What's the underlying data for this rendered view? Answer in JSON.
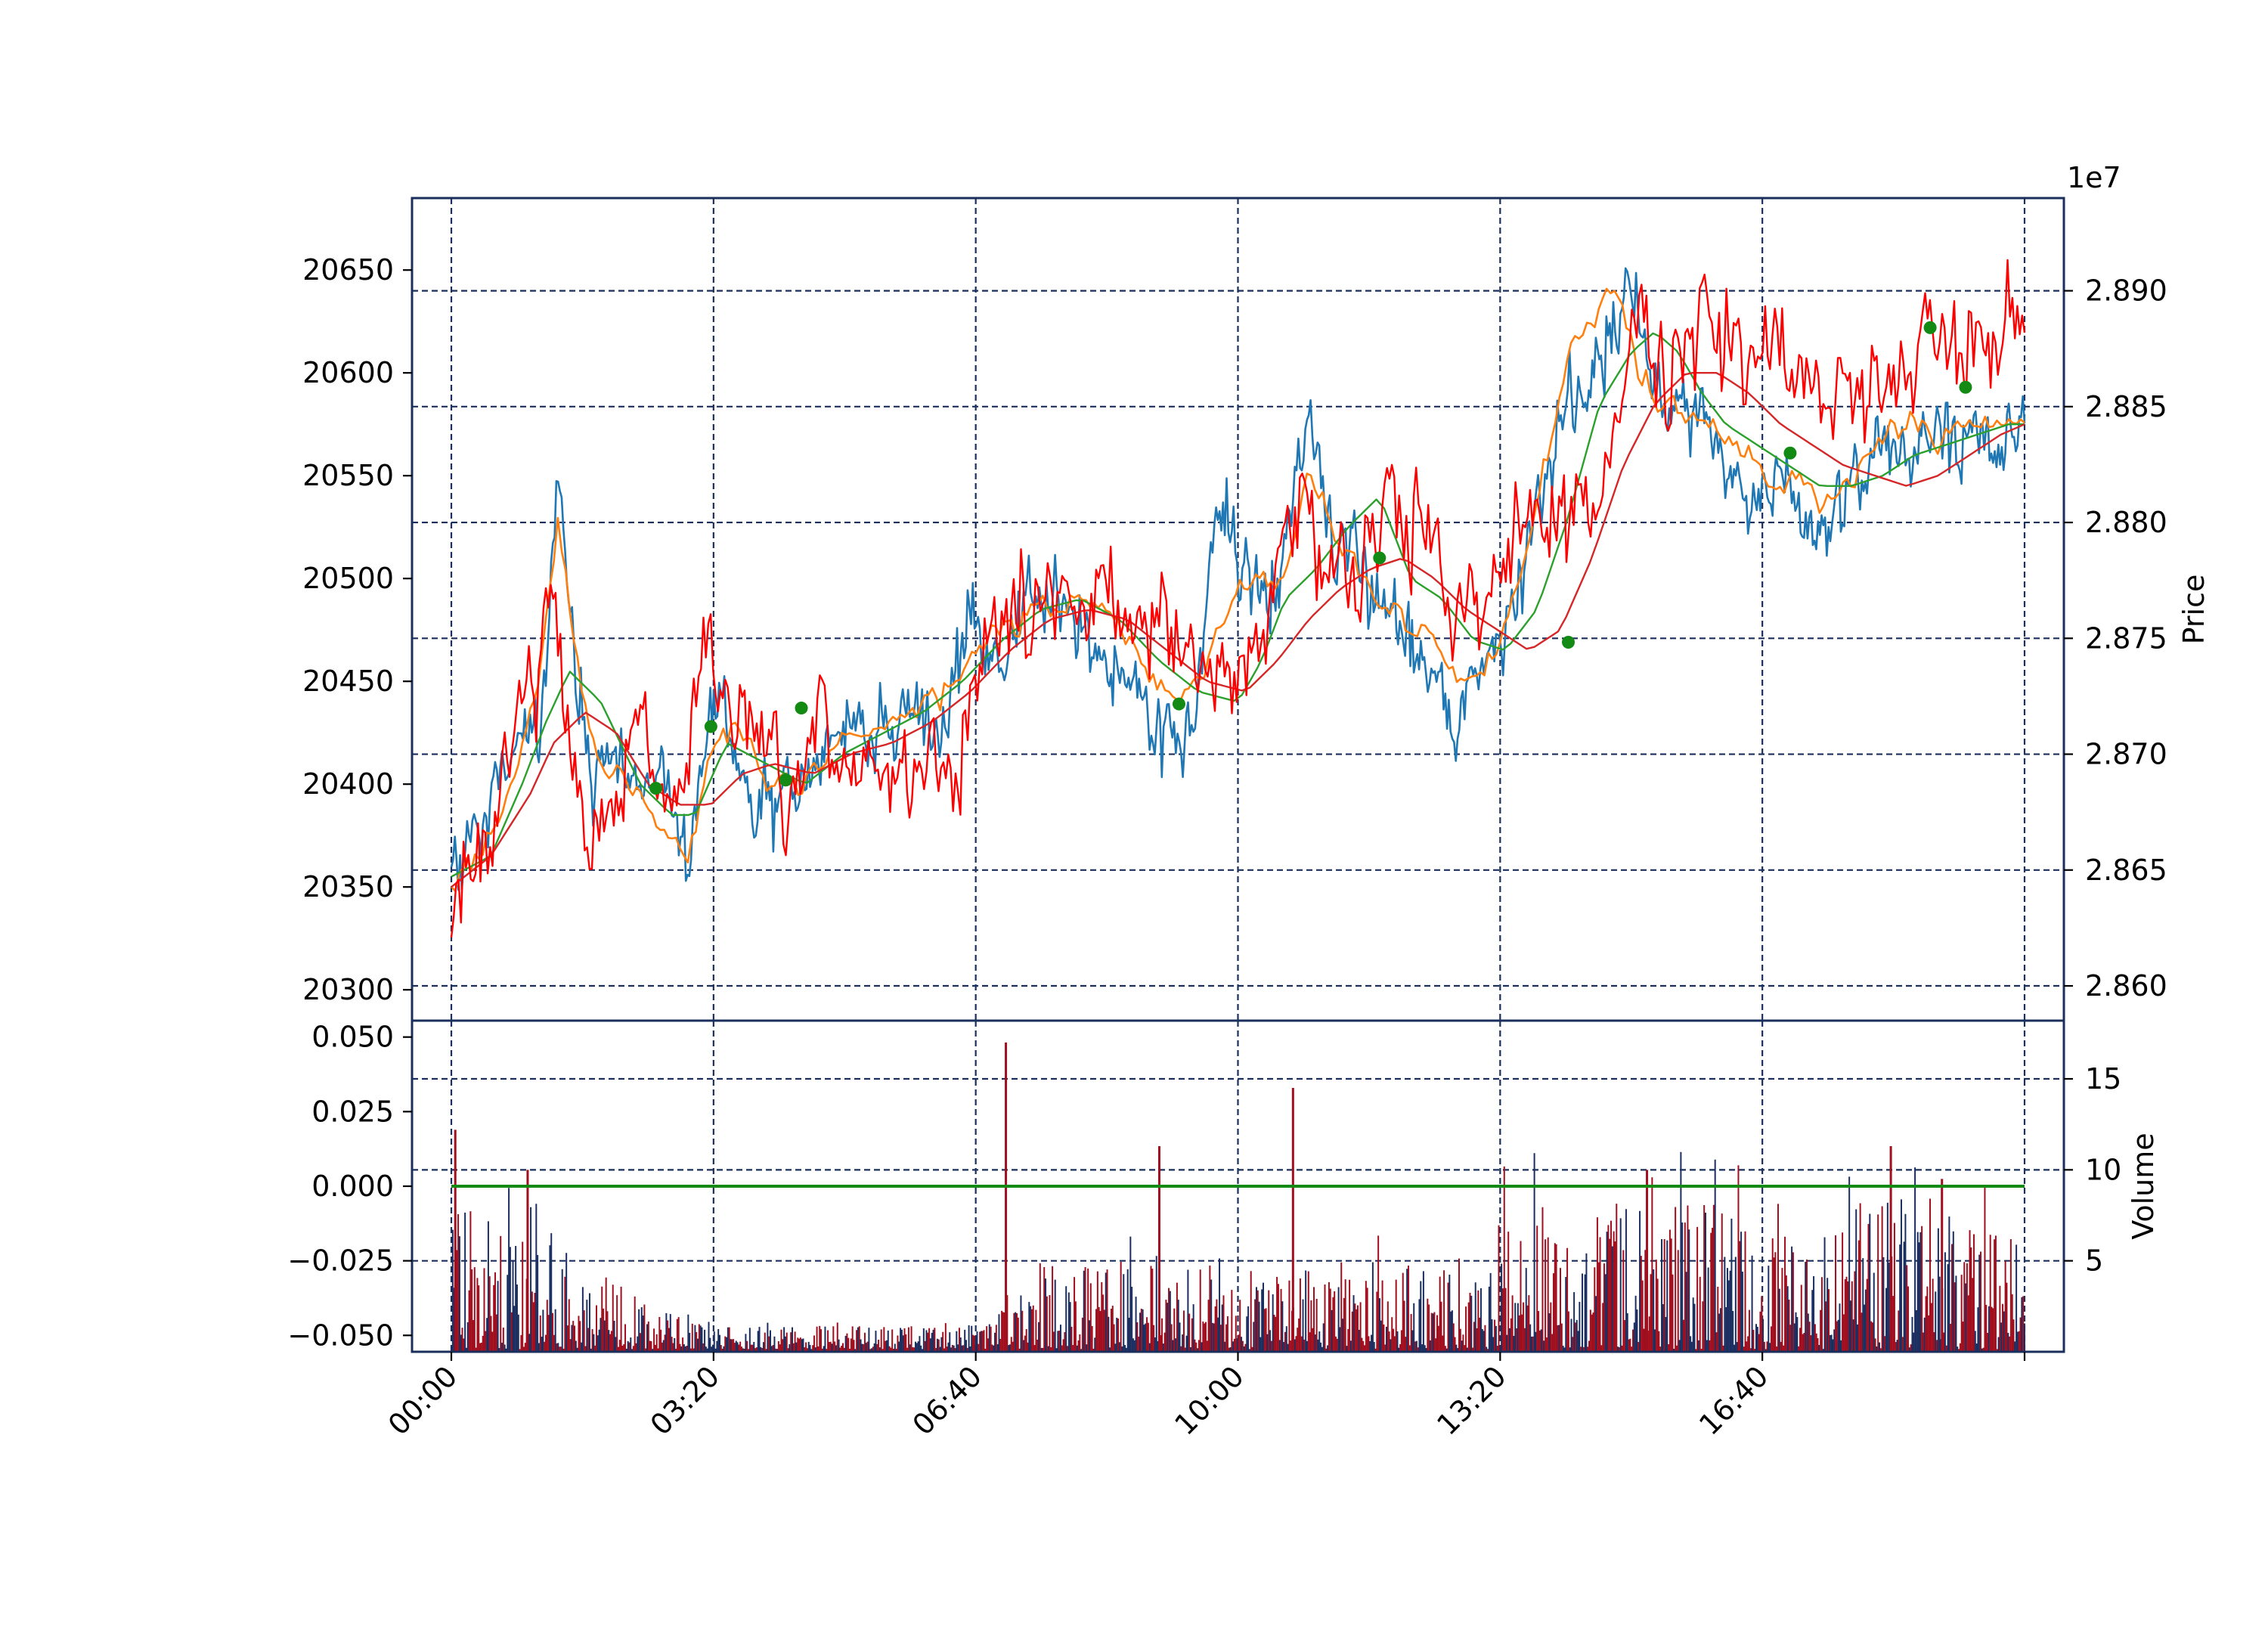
{
  "chart_data": {
    "type": "line",
    "panels": [
      {
        "id": "price",
        "left_axis": {
          "ylim": [
            20285,
            20685
          ],
          "ticks": [
            20300,
            20350,
            20400,
            20450,
            20500,
            20550,
            20600,
            20650
          ],
          "tick_labels": [
            "20300",
            "20350",
            "20400",
            "20450",
            "20500",
            "20550",
            "20600",
            "20650"
          ]
        },
        "right_axis": {
          "label": "Price",
          "offset_label": "1e7",
          "ylim": [
            2.8585,
            2.894
          ],
          "ticks": [
            2.86,
            2.865,
            2.87,
            2.875,
            2.88,
            2.885,
            2.89
          ],
          "tick_labels": [
            "2.860",
            "2.865",
            "2.870",
            "2.875",
            "2.880",
            "2.885",
            "2.890"
          ]
        },
        "grid": true
      },
      {
        "id": "volume",
        "left_axis": {
          "ylim": [
            -0.0555,
            0.0555
          ],
          "ticks": [
            -0.05,
            -0.025,
            0.0,
            0.025,
            0.05
          ],
          "tick_labels": [
            "−0.050",
            "−0.025",
            "0.000",
            "0.025",
            "0.050"
          ]
        },
        "right_axis": {
          "label": "Volume",
          "ylim": [
            0,
            18.2
          ],
          "ticks": [
            5,
            10,
            15
          ],
          "tick_labels": [
            "5",
            "10",
            "15"
          ]
        },
        "grid": true
      }
    ],
    "x_axis": {
      "range_hours": [
        -0.5,
        20.5
      ],
      "ticks": [
        "00:00",
        "03:20",
        "06:40",
        "10:00",
        "13:20",
        "16:40",
        "20:00"
      ],
      "tick_labels": [
        "00:00",
        "03:20",
        "06:40",
        "10:00",
        "13:20",
        "16:40",
        ""
      ],
      "label_rotation_deg": -45
    },
    "colors": {
      "blue": "#1f77b4",
      "orange": "#ff7f0e",
      "green": "#2ca02c",
      "darkred": "#d62728",
      "red": "#ff0000",
      "grid": "#1a2f5c",
      "frame": "#1a2f5c",
      "vol_red": "#a10e1e",
      "vol_navy": "#1b2e60",
      "zero_line": "#138a13",
      "marker": "#138a13"
    },
    "series": [
      {
        "axis": "left",
        "color": "blue",
        "x": [
          0.0,
          0.4,
          0.6,
          0.9,
          1.0,
          1.1,
          1.35,
          1.5,
          1.8,
          2.0,
          2.3,
          2.6,
          2.9,
          3.0,
          3.2,
          3.4,
          3.6,
          3.8,
          4.1,
          4.3,
          4.6,
          5.0,
          5.3,
          5.6,
          5.9,
          6.2,
          6.6,
          6.8,
          7.0,
          7.2,
          7.4,
          7.8,
          8.2,
          8.6,
          9.0,
          9.4,
          9.6,
          9.8,
          10.0,
          10.2,
          10.4,
          10.6,
          10.9,
          11.2,
          11.6,
          11.8,
          12.0,
          12.2,
          12.5,
          12.8,
          13.1,
          13.4,
          13.6,
          13.9,
          14.2,
          14.5,
          14.8,
          15.0,
          15.2,
          15.4,
          15.6,
          15.8,
          16.0,
          16.2,
          16.4,
          16.6,
          16.9,
          17.2,
          17.6,
          17.9,
          18.2,
          18.5,
          18.8,
          19.0,
          19.2,
          19.4,
          19.6,
          19.8,
          20.0
        ],
        "y": [
          20355,
          20380,
          20400,
          20415,
          20430,
          20410,
          20545,
          20480,
          20405,
          20420,
          20400,
          20415,
          20370,
          20360,
          20420,
          20455,
          20405,
          20395,
          20385,
          20400,
          20405,
          20430,
          20425,
          20430,
          20440,
          20420,
          20480,
          20470,
          20460,
          20480,
          20490,
          20485,
          20465,
          20450,
          20430,
          20420,
          20490,
          20535,
          20505,
          20500,
          20485,
          20520,
          20580,
          20520,
          20500,
          20490,
          20480,
          20475,
          20450,
          20430,
          20460,
          20480,
          20495,
          20550,
          20590,
          20600,
          20625,
          20645,
          20600,
          20580,
          20590,
          20585,
          20575,
          20560,
          20540,
          20535,
          20550,
          20525,
          20530,
          20545,
          20575,
          20560,
          20560,
          20575,
          20565,
          20580,
          20570,
          20575,
          20575
        ]
      },
      {
        "axis": "left",
        "color": "orange",
        "x": [
          0.0,
          0.4,
          0.8,
          1.1,
          1.35,
          1.6,
          1.9,
          2.3,
          2.7,
          3.0,
          3.3,
          3.6,
          4.0,
          4.4,
          4.8,
          5.2,
          5.6,
          6.0,
          6.4,
          6.8,
          7.2,
          7.6,
          8.0,
          8.4,
          8.8,
          9.2,
          9.6,
          10.0,
          10.3,
          10.6,
          10.9,
          11.2,
          11.5,
          11.8,
          12.1,
          12.4,
          12.7,
          13.0,
          13.3,
          13.6,
          13.9,
          14.2,
          14.5,
          14.8,
          15.1,
          15.4,
          15.6,
          15.9,
          16.2,
          16.5,
          16.8,
          17.1,
          17.4,
          17.7,
          18.0,
          18.3,
          18.6,
          18.9,
          19.2,
          19.5,
          19.8,
          20.0
        ],
        "y": [
          20350,
          20365,
          20400,
          20450,
          20530,
          20460,
          20405,
          20400,
          20380,
          20365,
          20415,
          20430,
          20400,
          20400,
          20415,
          20425,
          20430,
          20435,
          20450,
          20470,
          20480,
          20485,
          20490,
          20480,
          20460,
          20440,
          20455,
          20495,
          20500,
          20500,
          20555,
          20525,
          20505,
          20490,
          20480,
          20470,
          20460,
          20450,
          20465,
          20500,
          20560,
          20610,
          20625,
          20640,
          20600,
          20585,
          20585,
          20580,
          20570,
          20560,
          20545,
          20550,
          20535,
          20545,
          20560,
          20570,
          20575,
          20565,
          20575,
          20575,
          20575,
          20575
        ]
      },
      {
        "axis": "left",
        "color": "green",
        "x": [
          0.0,
          0.5,
          0.9,
          1.2,
          1.5,
          1.9,
          2.4,
          2.8,
          3.1,
          3.5,
          4.0,
          4.5,
          5.0,
          5.5,
          6.0,
          6.5,
          7.0,
          7.5,
          8.0,
          8.5,
          9.0,
          9.5,
          10.0,
          10.3,
          10.6,
          11.0,
          11.4,
          11.8,
          12.2,
          12.6,
          13.0,
          13.4,
          13.8,
          14.2,
          14.6,
          15.0,
          15.3,
          15.6,
          15.9,
          16.2,
          16.6,
          17.0,
          17.4,
          17.8,
          18.2,
          18.6,
          19.0,
          19.4,
          19.8,
          20.0
        ],
        "y": [
          20355,
          20365,
          20400,
          20430,
          20455,
          20440,
          20400,
          20385,
          20385,
          20420,
          20410,
          20400,
          20415,
          20425,
          20435,
          20450,
          20470,
          20485,
          20490,
          20480,
          20460,
          20445,
          20440,
          20460,
          20490,
          20505,
          20525,
          20540,
          20500,
          20490,
          20470,
          20465,
          20485,
          20530,
          20585,
          20610,
          20620,
          20610,
          20590,
          20575,
          20565,
          20555,
          20545,
          20545,
          20550,
          20560,
          20565,
          20570,
          20575,
          20575
        ]
      },
      {
        "axis": "left",
        "color": "darkred",
        "x": [
          0.0,
          0.5,
          1.0,
          1.3,
          1.7,
          2.1,
          2.5,
          2.9,
          3.3,
          3.7,
          4.1,
          4.6,
          5.1,
          5.6,
          6.1,
          6.6,
          7.1,
          7.6,
          8.1,
          8.6,
          9.1,
          9.6,
          10.1,
          10.5,
          10.9,
          11.3,
          11.7,
          12.1,
          12.5,
          12.9,
          13.3,
          13.7,
          14.1,
          14.5,
          14.9,
          15.3,
          15.7,
          16.1,
          16.5,
          16.9,
          17.3,
          17.7,
          18.1,
          18.5,
          18.9,
          19.3,
          19.7,
          20.0
        ],
        "y": [
          20350,
          20365,
          20395,
          20420,
          20435,
          20425,
          20400,
          20390,
          20390,
          20405,
          20410,
          20405,
          20415,
          20420,
          20430,
          20445,
          20465,
          20480,
          20485,
          20480,
          20465,
          20450,
          20445,
          20460,
          20480,
          20495,
          20505,
          20510,
          20500,
          20485,
          20475,
          20465,
          20475,
          20510,
          20555,
          20585,
          20600,
          20600,
          20590,
          20575,
          20565,
          20555,
          20550,
          20545,
          20550,
          20560,
          20570,
          20575
        ]
      },
      {
        "axis": "right",
        "color": "red",
        "x": [
          0.0,
          0.2,
          0.5,
          0.8,
          1.1,
          1.3,
          1.5,
          1.8,
          2.1,
          2.4,
          2.7,
          3.0,
          3.3,
          3.6,
          3.9,
          4.2,
          4.5,
          4.8,
          5.2,
          5.6,
          6.0,
          6.4,
          6.8,
          7.1,
          7.5,
          7.9,
          8.3,
          8.7,
          9.1,
          9.5,
          9.9,
          10.3,
          10.7,
          11.1,
          11.5,
          11.9,
          12.3,
          12.7,
          13.1,
          13.5,
          13.9,
          14.3,
          14.7,
          15.0,
          15.3,
          15.6,
          15.9,
          16.2,
          16.5,
          16.8,
          17.1,
          17.5,
          17.9,
          18.2,
          18.5,
          18.8,
          19.1,
          19.4,
          19.7,
          20.0
        ],
        "y": [
          2.8625,
          2.865,
          2.8665,
          2.8705,
          2.8735,
          2.8795,
          2.8695,
          2.866,
          2.8685,
          2.871,
          2.8675,
          2.8695,
          2.875,
          2.872,
          2.8695,
          2.868,
          2.869,
          2.8705,
          2.8695,
          2.869,
          2.8695,
          2.8695,
          2.8745,
          2.8755,
          2.877,
          2.876,
          2.8775,
          2.8765,
          2.875,
          2.8735,
          2.873,
          2.8755,
          2.8805,
          2.8785,
          2.878,
          2.8815,
          2.879,
          2.8775,
          2.8765,
          2.8805,
          2.879,
          2.8805,
          2.8825,
          2.8905,
          2.886,
          2.8875,
          2.889,
          2.8875,
          2.8865,
          2.8885,
          2.8855,
          2.886,
          2.8855,
          2.886,
          2.887,
          2.889,
          2.8875,
          2.888,
          2.889,
          2.8895
        ]
      }
    ],
    "markers": [
      {
        "hours": 2.6,
        "price": 20398
      },
      {
        "hours": 3.3,
        "price": 20428
      },
      {
        "hours": 4.25,
        "price": 20402
      },
      {
        "hours": 4.45,
        "price": 20437
      },
      {
        "hours": 9.25,
        "price": 20439
      },
      {
        "hours": 11.8,
        "price": 20510
      },
      {
        "hours": 14.2,
        "price": 20469
      },
      {
        "hours": 17.02,
        "price": 20561
      },
      {
        "hours": 18.8,
        "price": 20622
      },
      {
        "hours": 19.25,
        "price": 20593
      }
    ],
    "volume": {
      "zero_line_value": 0.0,
      "spikes": [
        {
          "hours": 0.05,
          "value": 12.2
        },
        {
          "hours": 0.97,
          "value": 10.0
        },
        {
          "hours": 7.05,
          "value": 17.0
        },
        {
          "hours": 9.0,
          "value": 11.3
        },
        {
          "hours": 10.7,
          "value": 14.5
        },
        {
          "hours": 15.2,
          "value": 10.0
        },
        {
          "hours": 18.3,
          "value": 11.3
        },
        {
          "hours": 18.95,
          "value": 9.5
        }
      ],
      "envelope": [
        {
          "hours": 0.0,
          "level": 5.0
        },
        {
          "hours": 1.5,
          "level": 3.5
        },
        {
          "hours": 2.5,
          "level": 1.5
        },
        {
          "hours": 3.3,
          "level": 0.8
        },
        {
          "hours": 6.8,
          "level": 0.8
        },
        {
          "hours": 7.5,
          "level": 3.0
        },
        {
          "hours": 13.3,
          "level": 3.0
        },
        {
          "hours": 13.4,
          "level": 5.0
        },
        {
          "hours": 16.5,
          "level": 5.0
        },
        {
          "hours": 17.3,
          "level": 3.0
        },
        {
          "hours": 18.0,
          "level": 5.5
        },
        {
          "hours": 20.0,
          "level": 4.0
        }
      ]
    }
  }
}
